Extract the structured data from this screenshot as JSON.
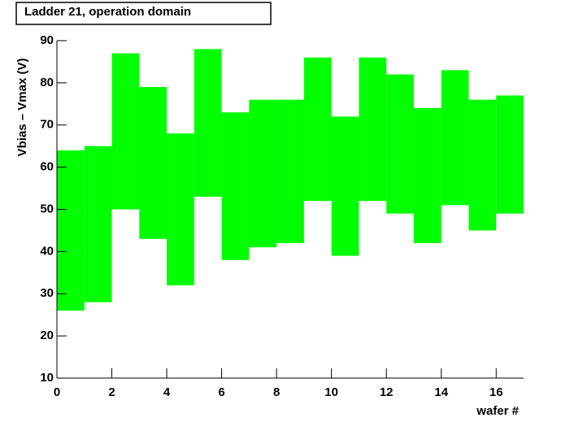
{
  "chart_data": {
    "type": "range",
    "title": "Ladder 21, operation domain",
    "xlabel": "wafer #",
    "ylabel": "Vbias – Vmax (V)",
    "bins": [
      0,
      1,
      2,
      3,
      4,
      5,
      6,
      7,
      8,
      9,
      10,
      11,
      12,
      13,
      14,
      15,
      16,
      17
    ],
    "low": [
      26,
      28,
      50,
      43,
      32,
      53,
      38,
      41,
      42,
      52,
      39,
      52,
      49,
      42,
      51,
      45,
      49
    ],
    "high": [
      64,
      65,
      87,
      79,
      68,
      88,
      73,
      76,
      76,
      86,
      72,
      86,
      82,
      74,
      83,
      76,
      77
    ],
    "color": "#00ff00",
    "xlim": [
      0,
      17
    ],
    "xticks": [
      0,
      2,
      4,
      6,
      8,
      10,
      12,
      14,
      16
    ],
    "ylim": [
      10,
      90
    ],
    "yticks": [
      10,
      20,
      30,
      40,
      50,
      60,
      70,
      80,
      90
    ]
  }
}
